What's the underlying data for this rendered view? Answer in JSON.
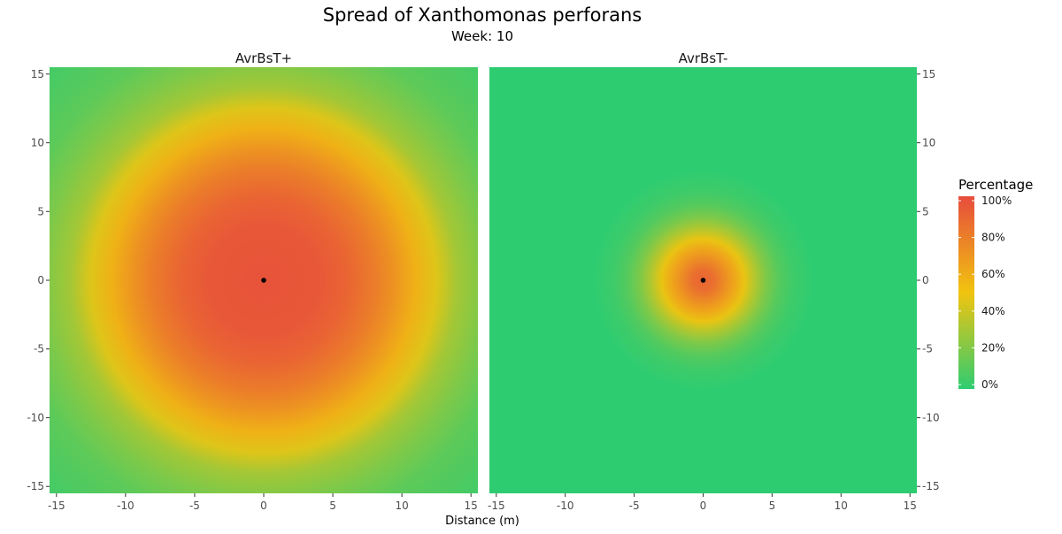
{
  "chart_data": {
    "type": "heatmap",
    "title": "Spread of Xanthomonas perforans",
    "subtitle": "Week: 10",
    "xlabel": "Distance (m)",
    "ylabel": "",
    "xlim": [
      -15.5,
      15.5
    ],
    "ylim": [
      -15.5,
      15.5
    ],
    "x_ticks": [
      -15,
      -10,
      -5,
      0,
      5,
      10,
      15
    ],
    "y_ticks": [
      -15,
      -10,
      -5,
      0,
      5,
      10,
      15
    ],
    "x_tick_labels": [
      "-15",
      "-10",
      "-5",
      "0",
      "5",
      "10",
      "15"
    ],
    "y_tick_labels": [
      "-15",
      "-10",
      "-5",
      "0",
      "5",
      "10",
      "15"
    ],
    "panels": [
      {
        "name": "AvrBsT+",
        "source_point": [
          0,
          0
        ],
        "radial_profile": {
          "distance": [
            0,
            4,
            6,
            8,
            9.5,
            11,
            12.5,
            14,
            16,
            18,
            22
          ],
          "percentage": [
            97,
            95,
            90,
            80,
            70,
            58,
            45,
            30,
            20,
            12,
            5
          ]
        }
      },
      {
        "name": "AvrBsT-",
        "source_point": [
          0,
          0
        ],
        "radial_profile": {
          "distance": [
            0,
            0.8,
            1.5,
            2.3,
            3,
            3.8,
            4.6,
            5.5,
            6.5,
            8,
            22
          ],
          "percentage": [
            90,
            85,
            74,
            62,
            48,
            33,
            20,
            10,
            4,
            0,
            0
          ]
        }
      }
    ],
    "legend": {
      "title": "Percentage",
      "position": "right",
      "breaks": [
        0,
        20,
        40,
        60,
        80,
        100
      ],
      "labels": [
        "0%",
        "20%",
        "40%",
        "60%",
        "80%",
        "100%"
      ],
      "colors": [
        "#2ecc71",
        "#f1c40f",
        "#e74c3c"
      ],
      "color_stops": [
        0,
        50,
        100
      ]
    },
    "grid": false
  }
}
